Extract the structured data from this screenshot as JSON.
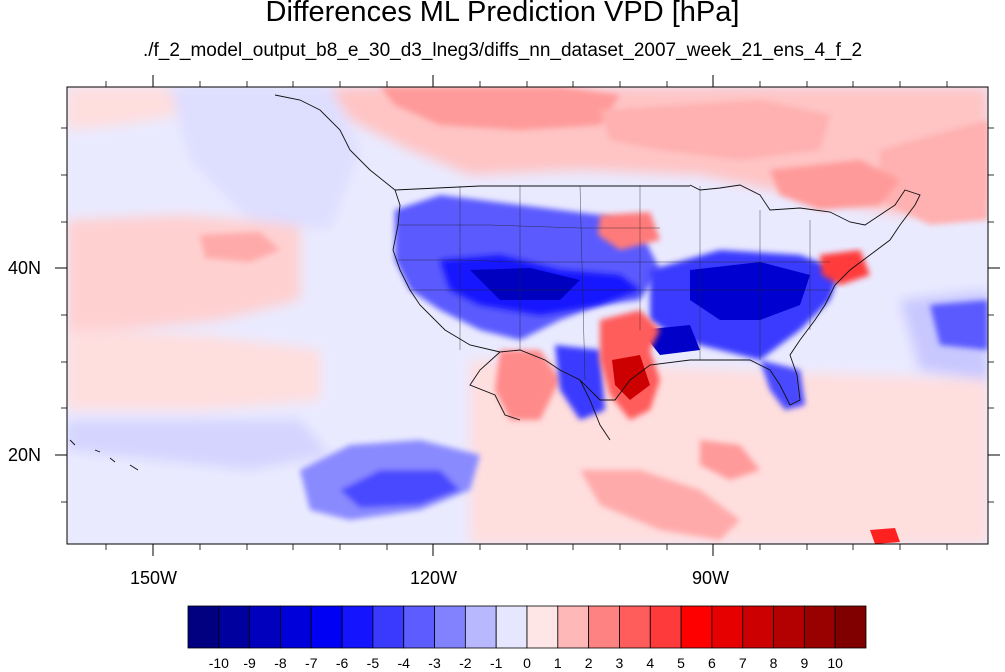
{
  "title": "Differences ML Prediction VPD [hPa]",
  "subtitle": "./f_2_model_output_b8_e_30_d3_lneg3/diffs_nn_dataset_2007_week_21_ens_4_f_2",
  "axes": {
    "x_ticks": [
      {
        "label": "150W",
        "lon": -150
      },
      {
        "label": "120W",
        "lon": -120
      },
      {
        "label": "90W",
        "lon": -90
      }
    ],
    "y_ticks": [
      {
        "label": "40N",
        "lat": 40
      },
      {
        "label": "20N",
        "lat": 20
      }
    ],
    "lon_range": [
      -159.5,
      -62
    ],
    "lat_range": [
      11,
      60
    ],
    "grid": false
  },
  "colorbar": {
    "position": "bottom",
    "levels": [
      "-10",
      "-9",
      "-8",
      "-7",
      "-6",
      "-5",
      "-4",
      "-3",
      "-2",
      "-1",
      "0",
      "1",
      "2",
      "3",
      "4",
      "5",
      "6",
      "7",
      "8",
      "9",
      "10"
    ],
    "colors": [
      "#000080",
      "#00009e",
      "#0000bd",
      "#0000db",
      "#0000f5",
      "#1414ff",
      "#3a3aff",
      "#5c5cff",
      "#8282ff",
      "#b8b8ff",
      "#e6e6ff",
      "#ffe6e6",
      "#ffb8b8",
      "#ff8282",
      "#ff5c5c",
      "#ff3a3a",
      "#ff0000",
      "#e60000",
      "#cc0000",
      "#b30000",
      "#990000",
      "#800000"
    ]
  }
}
